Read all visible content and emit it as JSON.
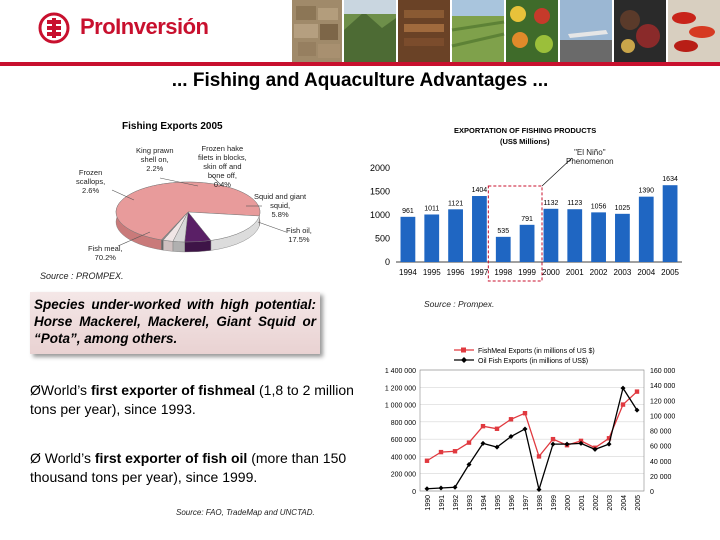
{
  "header": {
    "logo_text": "ProInversión",
    "photos": [
      "stone-wall-photo",
      "valley-photo",
      "lumber-photo",
      "crops-photo",
      "fruit-mosaic-photo",
      "airport-photo",
      "mixed-produce-photo",
      "peppers-photo"
    ]
  },
  "colors": {
    "brand_red": "#c8102e",
    "bar_blue": "#1f66c2",
    "pie_main": "#e89b9b",
    "pie_purple": "#5a1f66",
    "line_red": "#e0393f",
    "line_black": "#000000"
  },
  "slide": {
    "title": "... Fishing and Aquaculture Advantages ..."
  },
  "pie_panel": {
    "title": "Fishing Exports 2005",
    "source": "Source : PROMPEX.",
    "labels": {
      "king_prawn": [
        "King prawn",
        "shell on,",
        "2.2%"
      ],
      "frozen_hake": [
        "Frozen hake",
        "filets in blocks,",
        "skin off and",
        "bone off,",
        "0.4%"
      ],
      "frozen_scallops": [
        "Frozen",
        "scallops,",
        "2.6%"
      ],
      "squid": [
        "Squid and giant",
        "squid,",
        "5.8%"
      ],
      "fish_oil": [
        "Fish oil,",
        "17.5%"
      ],
      "fish_meal": [
        "Fish meal,",
        "70.2%"
      ]
    }
  },
  "species": {
    "text": "Species under-worked with high potential: Horse Mackerel, Mackerel, Giant Squid or “Pota”, among others."
  },
  "bullets": {
    "b1_prefix": "ØWorld’s ",
    "b1_bold": "first exporter of fishmeal",
    "b1_rest": " (1,8 to 2 million tons per year), since 1993.",
    "b2_prefix": "Ø World’s ",
    "b2_bold": "first exporter of fish oil",
    "b2_rest": " (more than 150 thousand tons per year), since 1999.",
    "source": "Source: FAO, TradeMap and UNCTAD."
  },
  "bar_panel": {
    "title_line1": "EXPORTATION OF FISHING PRODUCTS",
    "title_line2": "(US$ Millions)",
    "el_nino_line1": "\"El Niño\"",
    "el_nino_line2": "Phenomenon",
    "source": "Source : Prompex."
  },
  "chart_data": [
    {
      "type": "pie",
      "title": "Fishing Exports 2005",
      "slices": [
        {
          "label": "Fish meal",
          "value": 70.2
        },
        {
          "label": "Fish oil",
          "value": 17.5
        },
        {
          "label": "Squid and giant squid",
          "value": 5.8
        },
        {
          "label": "Frozen scallops",
          "value": 2.6
        },
        {
          "label": "King prawn shell on",
          "value": 2.2
        },
        {
          "label": "Frozen hake filets in blocks, skin off and bone off",
          "value": 0.4
        }
      ]
    },
    {
      "type": "bar",
      "title": "EXPORTATION OF FISHING PRODUCTS (US$ Millions)",
      "categories": [
        "1994",
        "1995",
        "1996",
        "1997",
        "1998",
        "1999",
        "2000",
        "2001",
        "2002",
        "2003",
        "2004",
        "2005"
      ],
      "values": [
        961,
        1011,
        1121,
        1404,
        535,
        791,
        1132,
        1123,
        1056,
        1025,
        1390,
        1634
      ],
      "yticks": [
        "0",
        "500",
        "1000",
        "1500",
        "2000"
      ],
      "ylim": [
        0,
        2000
      ]
    },
    {
      "type": "line",
      "x": [
        "1990",
        "1991",
        "1992",
        "1993",
        "1994",
        "1995",
        "1996",
        "1997",
        "1998",
        "1999",
        "2000",
        "2001",
        "2002",
        "2003",
        "2004",
        "2005"
      ],
      "series": [
        {
          "name": "FishMeal Exports (in millions of US $)",
          "axis": "left",
          "values": [
            350000,
            450000,
            460000,
            560000,
            750000,
            720000,
            830000,
            900000,
            400000,
            600000,
            530000,
            580000,
            500000,
            610000,
            1000000,
            1150000
          ]
        },
        {
          "name": "Oil Fish Exports (in millions of US$)",
          "axis": "right",
          "values": [
            3000,
            4000,
            5000,
            35000,
            63000,
            58000,
            72000,
            82000,
            2000,
            62000,
            62000,
            63000,
            55000,
            62000,
            136000,
            107000
          ]
        }
      ],
      "left_yticks": [
        "0",
        "200 000",
        "400 000",
        "600 000",
        "800 000",
        "1 000 000",
        "1 200 000",
        "1 400 000"
      ],
      "right_yticks": [
        "0",
        "20 000",
        "40 000",
        "60 000",
        "80 000",
        "100 000",
        "120 000",
        "140 000",
        "160 000"
      ],
      "left_ylim": [
        0,
        1400000
      ],
      "right_ylim": [
        0,
        160000
      ]
    }
  ]
}
